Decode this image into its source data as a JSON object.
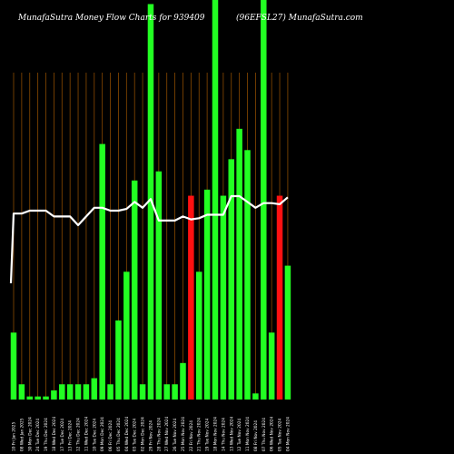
{
  "chart_data": {
    "type": "bar",
    "title_left": "MunafaSutra  Money Flow  Charts for 939409",
    "title_right": "(96EFSL27) MunafaSutra.com",
    "categories": [
      "10 Fri Jan 2025",
      "08 Wed Jan 2025",
      "30 Mon Dec 2024",
      "24 Tue Dec 2024",
      "19 Thu Dec 2024",
      "18 Wed Dec 2024",
      "17 Tue Dec 2024",
      "13 Fri Dec 2024",
      "12 Thu Dec 2024",
      "11 Wed Dec 2024",
      "10 Tue Dec 2024",
      "09 Mon Dec 2024",
      "06 Fri Dec 2024",
      "05 Thu Dec 2024",
      "04 Wed Dec 2024",
      "03 Tue Dec 2024",
      "02 Mon Dec 2024",
      "29 Fri Nov 2024",
      "28 Thu Nov 2024",
      "27 Wed Nov 2024",
      "26 Tue Nov 2024",
      "25 Mon Nov 2024",
      "22 Fri Nov 2024",
      "21 Thu Nov 2024",
      "19 Tue Nov 2024",
      "18 Mon Nov 2024",
      "14 Thu Nov 2024",
      "13 Wed Nov 2024",
      "12 Tue Nov 2024",
      "11 Mon Nov 2024",
      "08 Fri Nov 2024",
      "07 Thu Nov 2024",
      "06 Wed Nov 2024",
      "05 Tue Nov 2024",
      "04 Mon Nov 2024"
    ],
    "bar_values": [
      22,
      5,
      1,
      1,
      1,
      3,
      5,
      5,
      5,
      5,
      7,
      84,
      5,
      26,
      42,
      72,
      5,
      130,
      75,
      5,
      5,
      12,
      67,
      42,
      69,
      150,
      67,
      79,
      89,
      82,
      2,
      140,
      22,
      67,
      44
    ],
    "bar_colors": [
      "green",
      "green",
      "green",
      "green",
      "green",
      "green",
      "green",
      "green",
      "green",
      "green",
      "green",
      "green",
      "green",
      "green",
      "green",
      "green",
      "green",
      "green",
      "green",
      "green",
      "green",
      "green",
      "red",
      "green",
      "green",
      "green",
      "green",
      "green",
      "green",
      "green",
      "green",
      "green",
      "green",
      "red",
      "green"
    ],
    "line_values": [
      72,
      72,
      72.5,
      72.5,
      72.5,
      71.5,
      71.5,
      71.5,
      70,
      71.5,
      73,
      73,
      72.5,
      72.5,
      72.8,
      74,
      73,
      74.5,
      70.8,
      70.8,
      70.8,
      71.5,
      71,
      71.2,
      71.8,
      71.8,
      71.8,
      75,
      75,
      74,
      73,
      73.8,
      73.8,
      73.6,
      74.8
    ],
    "line_start": 60,
    "y_bar_max": 100,
    "line_range": [
      40,
      90
    ],
    "colors": {
      "background": "#000000",
      "grid": "#8a4a00",
      "bar_up": "#22ff22",
      "bar_down": "#ff1111",
      "line": "#ffffff",
      "text": "#ffffff"
    }
  }
}
